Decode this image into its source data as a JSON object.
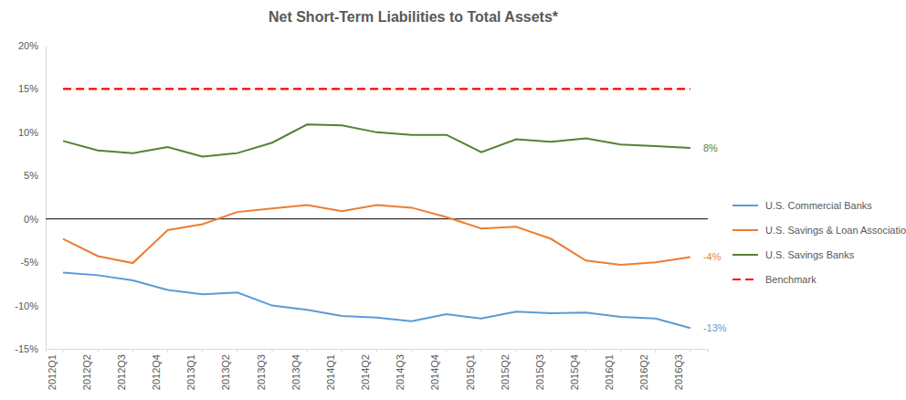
{
  "chart_data": {
    "type": "line",
    "title": "Net Short-Term Liabilities to Total Assets*",
    "categories": [
      "2012Q1",
      "2012Q2",
      "2012Q3",
      "2012Q4",
      "2013Q1",
      "2013Q2",
      "2013Q3",
      "2013Q4",
      "2014Q1",
      "2014Q2",
      "2014Q3",
      "2014Q4",
      "2015Q1",
      "2015Q2",
      "2015Q3",
      "2015Q4",
      "2016Q1",
      "2016Q2",
      "2016Q3"
    ],
    "series": [
      {
        "name": "U.S. Commercial Banks",
        "color": "#5B9BD5",
        "line_style": "solid",
        "values": [
          -6.2,
          -6.5,
          -7.1,
          -8.2,
          -8.7,
          -8.5,
          -10.0,
          -10.5,
          -11.2,
          -11.4,
          -11.8,
          -11.0,
          -11.5,
          -10.7,
          -10.9,
          -10.8,
          -11.3,
          -11.5,
          -12.6
        ]
      },
      {
        "name": "U.S. Savings & Loan Associations",
        "color": "#ED7D31",
        "line_style": "solid",
        "values": [
          -2.3,
          -4.3,
          -5.1,
          -1.3,
          -0.6,
          0.8,
          1.2,
          1.6,
          0.9,
          1.6,
          1.3,
          0.2,
          -1.1,
          -0.9,
          -2.3,
          -4.8,
          -5.3,
          -5.0,
          -4.4
        ]
      },
      {
        "name": "U.S. Savings Banks",
        "color": "#548235",
        "line_style": "solid",
        "values": [
          9.0,
          7.9,
          7.6,
          8.3,
          7.2,
          7.6,
          8.8,
          10.9,
          10.8,
          10.0,
          9.7,
          9.7,
          7.7,
          9.2,
          8.9,
          9.3,
          8.6,
          8.4,
          8.2
        ]
      },
      {
        "name": "Benchmark",
        "color": "#FF0000",
        "line_style": "dashed",
        "values": [
          15,
          15,
          15,
          15,
          15,
          15,
          15,
          15,
          15,
          15,
          15,
          15,
          15,
          15,
          15,
          15,
          15,
          15,
          15
        ]
      }
    ],
    "annotations": [
      {
        "text": "8%",
        "x": "2016Q3",
        "y": 8.2,
        "color": "#548235"
      },
      {
        "text": "-4%",
        "x": "2016Q3",
        "y": -4.4,
        "color": "#ED7D31"
      },
      {
        "text": "-13%",
        "x": "2016Q3",
        "y": -12.6,
        "color": "#5B9BD5"
      }
    ],
    "ylim": [
      -15,
      20
    ],
    "yticks": [
      {
        "value": -15,
        "label": "-15%"
      },
      {
        "value": -10,
        "label": "-10%"
      },
      {
        "value": -5,
        "label": "-5%"
      },
      {
        "value": 0,
        "label": "0%"
      },
      {
        "value": 5,
        "label": "5%"
      },
      {
        "value": 10,
        "label": "10%"
      },
      {
        "value": 15,
        "label": "15%"
      },
      {
        "value": 20,
        "label": "20%"
      }
    ],
    "grid": false,
    "legend": "right"
  }
}
